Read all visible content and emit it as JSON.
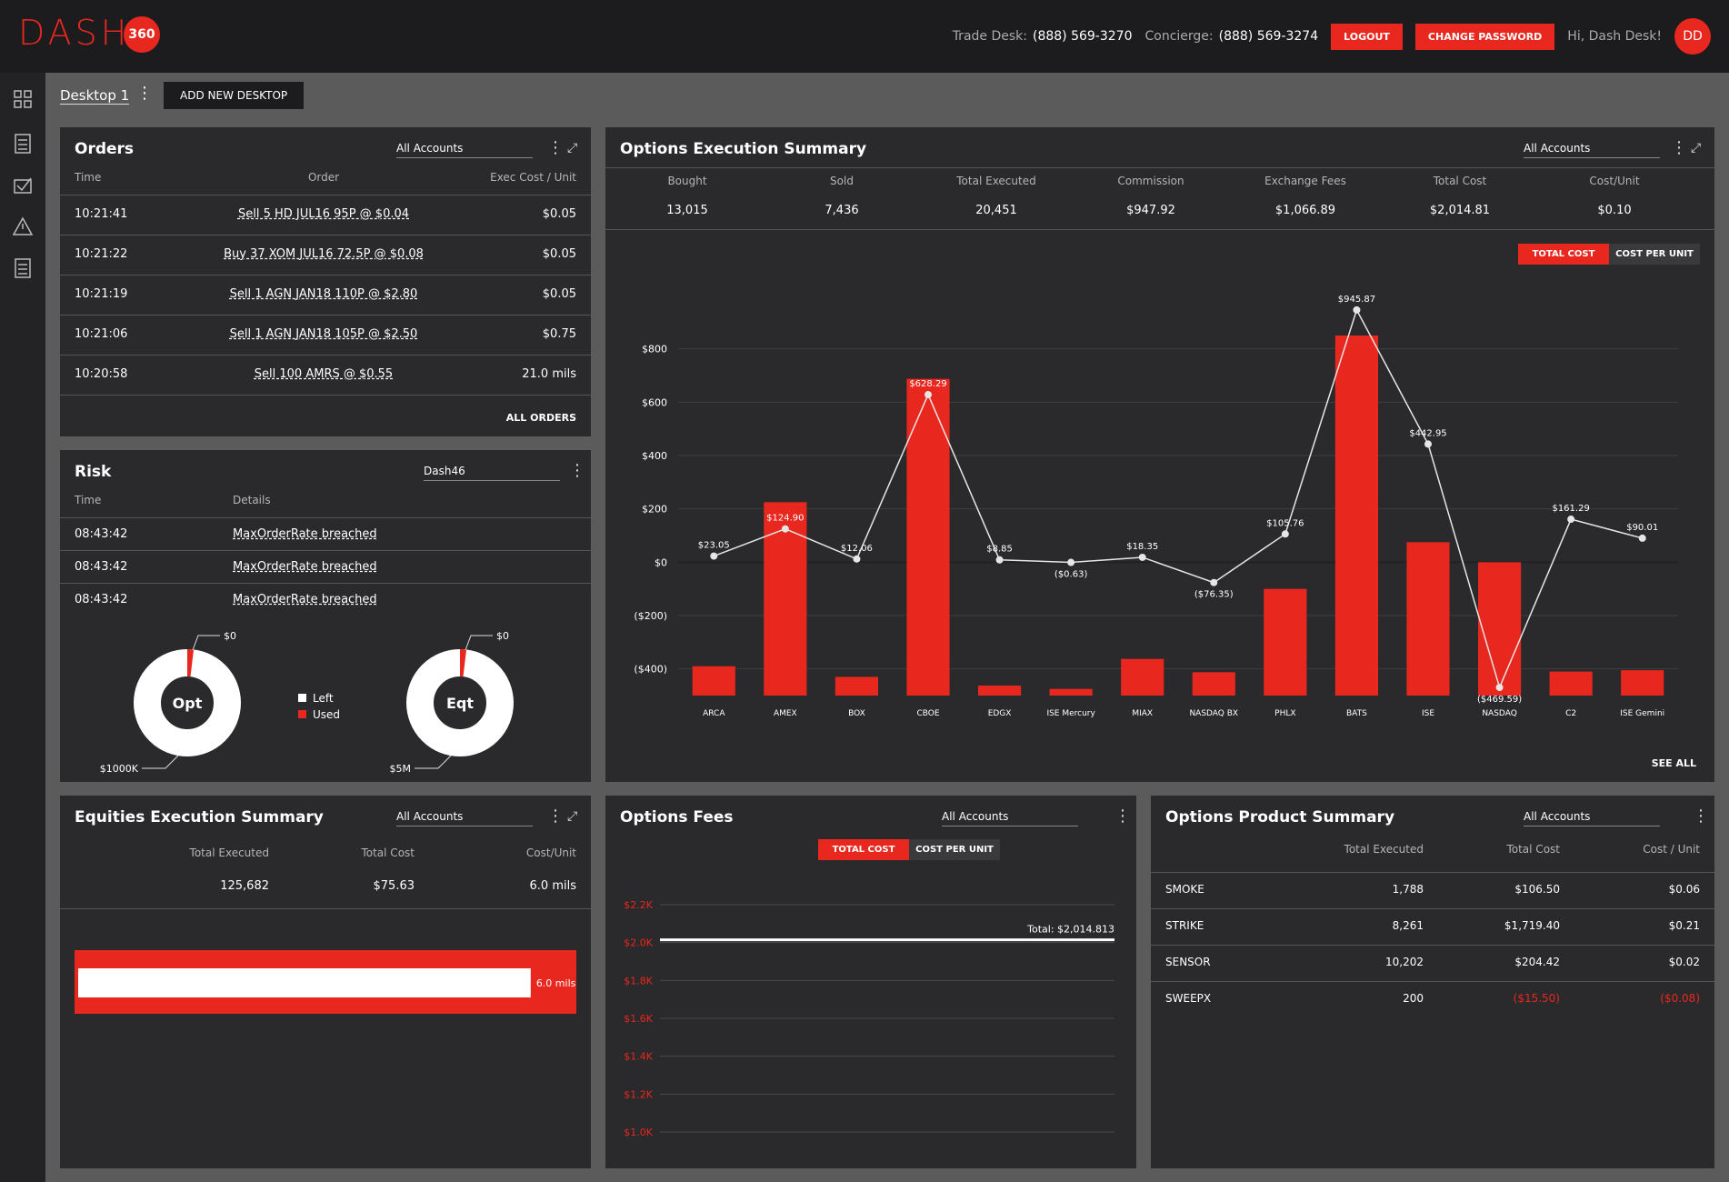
{
  "header": {
    "logo": "DASH",
    "logo_badge": "360",
    "trade_desk_label": "Trade Desk:",
    "trade_desk_phone": "(888) 569-3270",
    "concierge_label": "Concierge:",
    "concierge_phone": "(888) 569-3274",
    "logout": "LOGOUT",
    "change_password": "CHANGE PASSWORD",
    "greeting": "Hi, Dash Desk!",
    "avatar": "DD"
  },
  "desktop": {
    "name": "Desktop 1",
    "add_button": "ADD NEW DESKTOP"
  },
  "orders": {
    "title": "Orders",
    "account": "All Accounts",
    "columns": [
      "Time",
      "Order",
      "Exec Cost / Unit"
    ],
    "rows": [
      [
        "10:21:41",
        "Sell 5 HD JUL16 95P @ $0.04",
        "$0.05"
      ],
      [
        "10:21:22",
        "Buy 37 XOM JUL16 72.5P @ $0.08",
        "$0.05"
      ],
      [
        "10:21:19",
        "Sell 1 AGN JAN18 110P @ $2.80",
        "$0.05"
      ],
      [
        "10:21:06",
        "Sell 1 AGN JAN18 105P @ $2.50",
        "$0.75"
      ],
      [
        "10:20:58",
        "Sell 100 AMRS @ $0.55",
        "21.0 mils"
      ]
    ],
    "footer": "ALL ORDERS"
  },
  "risk": {
    "title": "Risk",
    "account": "Dash46",
    "columns": [
      "Time",
      "Details"
    ],
    "rows": [
      [
        "08:43:42",
        "MaxOrderRate breached"
      ],
      [
        "08:43:42",
        "MaxOrderRate breached"
      ],
      [
        "08:43:42",
        "MaxOrderRate breached"
      ]
    ],
    "donuts": [
      {
        "label": "Opt",
        "used_label": "$0",
        "total_label": "$1000K"
      },
      {
        "label": "Eqt",
        "used_label": "$0",
        "total_label": "$5M"
      }
    ],
    "legend": [
      "Left",
      "Used"
    ]
  },
  "options_execution_summary": {
    "title": "Options Execution Summary",
    "account": "All Accounts",
    "columns": [
      "Bought",
      "Sold",
      "Total Executed",
      "Commission",
      "Exchange Fees",
      "Total Cost",
      "Cost/Unit"
    ],
    "values": [
      "13,015",
      "7,436",
      "20,451",
      "$947.92",
      "$1,066.89",
      "$2,014.81",
      "$0.10"
    ],
    "toggle": [
      "TOTAL COST",
      "COST PER UNIT"
    ],
    "see_all": "SEE ALL",
    "chart": {
      "type": "bar-line",
      "categories": [
        "ARCA",
        "AMEX",
        "BOX",
        "CBOE",
        "EDGX",
        "ISE Mercury",
        "MIAX",
        "NASDAQ BX",
        "PHLX",
        "BATS",
        "ISE",
        "NASDAQ",
        "C2",
        "ISE Gemini"
      ],
      "series": [
        {
          "type": "bar",
          "axis": "y2",
          "color": "#e8271e",
          "values": [
            0.44,
            2.9,
            0.28,
            4.75,
            0.15,
            0.1,
            0.55,
            0.35,
            1.6,
            5.4,
            2.3,
            2.0,
            0.36,
            0.38
          ]
        },
        {
          "type": "line",
          "color": "#e6e6e6",
          "values": [
            23.05,
            124.9,
            12.06,
            628.29,
            8.85,
            -0.63,
            18.35,
            -76.35,
            105.76,
            945.87,
            442.95,
            -469.59,
            161.29,
            90.01
          ],
          "value_labels": [
            "$23.05",
            "$124.90",
            "$12.06",
            "$628.29",
            "$8.85",
            "($0.63)",
            "$18.35",
            "($76.35)",
            "$105.76",
            "$945.87",
            "$442.95",
            "($469.59)",
            "$161.29",
            "$90.01"
          ]
        }
      ],
      "ylim": [
        -500,
        1000
      ],
      "yticks": [
        {
          "value": 800,
          "label": "$800"
        },
        {
          "value": 600,
          "label": "$600"
        },
        {
          "value": 400,
          "label": "$400"
        },
        {
          "value": 200,
          "label": "$200"
        },
        {
          "value": 0,
          "label": "$0"
        },
        {
          "value": -200,
          "label": "($200)"
        },
        {
          "value": -400,
          "label": "($400)"
        }
      ],
      "y2lim": [
        0,
        6
      ],
      "grid": true
    }
  },
  "equities_execution_summary": {
    "title": "Equities Execution Summary",
    "account": "All Accounts",
    "columns": [
      "Total Executed",
      "Total Cost",
      "Cost/Unit"
    ],
    "values": [
      "125,682",
      "$75.63",
      "6.0 mils"
    ],
    "bar": {
      "value": 6.0,
      "xlim": [
        0,
        6.6
      ],
      "color": "#e8271e"
    }
  },
  "options_fees": {
    "title": "Options Fees",
    "account": "All Accounts",
    "toggle": [
      "TOTAL COST",
      "COST PER UNIT"
    ],
    "chart": {
      "type": "line",
      "ylim": [
        1000,
        2200
      ],
      "yticks": [
        {
          "value": 2200,
          "label": "$2.2K"
        },
        {
          "value": 2000,
          "label": "$2.0K"
        },
        {
          "value": 1800,
          "label": "$1.8K"
        },
        {
          "value": 1600,
          "label": "$1.6K"
        },
        {
          "value": 1400,
          "label": "$1.4K"
        },
        {
          "value": 1200,
          "label": "$1.2K"
        },
        {
          "value": 1000,
          "label": "$1.0K"
        }
      ],
      "total": 2014.813,
      "total_label": "Total: $2,014.813"
    }
  },
  "options_product_summary": {
    "title": "Options Product Summary",
    "account": "All Accounts",
    "columns": [
      "Total Executed",
      "Total Cost",
      "Cost / Unit"
    ],
    "rows": [
      {
        "name": "SMOKE",
        "values": [
          "1,788",
          "$106.50",
          "$0.06"
        ]
      },
      {
        "name": "STRIKE",
        "values": [
          "8,261",
          "$1,719.40",
          "$0.21"
        ]
      },
      {
        "name": "SENSOR",
        "values": [
          "10,202",
          "$204.42",
          "$0.02"
        ]
      },
      {
        "name": "SWEEPX",
        "values": [
          "200",
          "($15.50)",
          "($0.08)"
        ]
      }
    ]
  }
}
